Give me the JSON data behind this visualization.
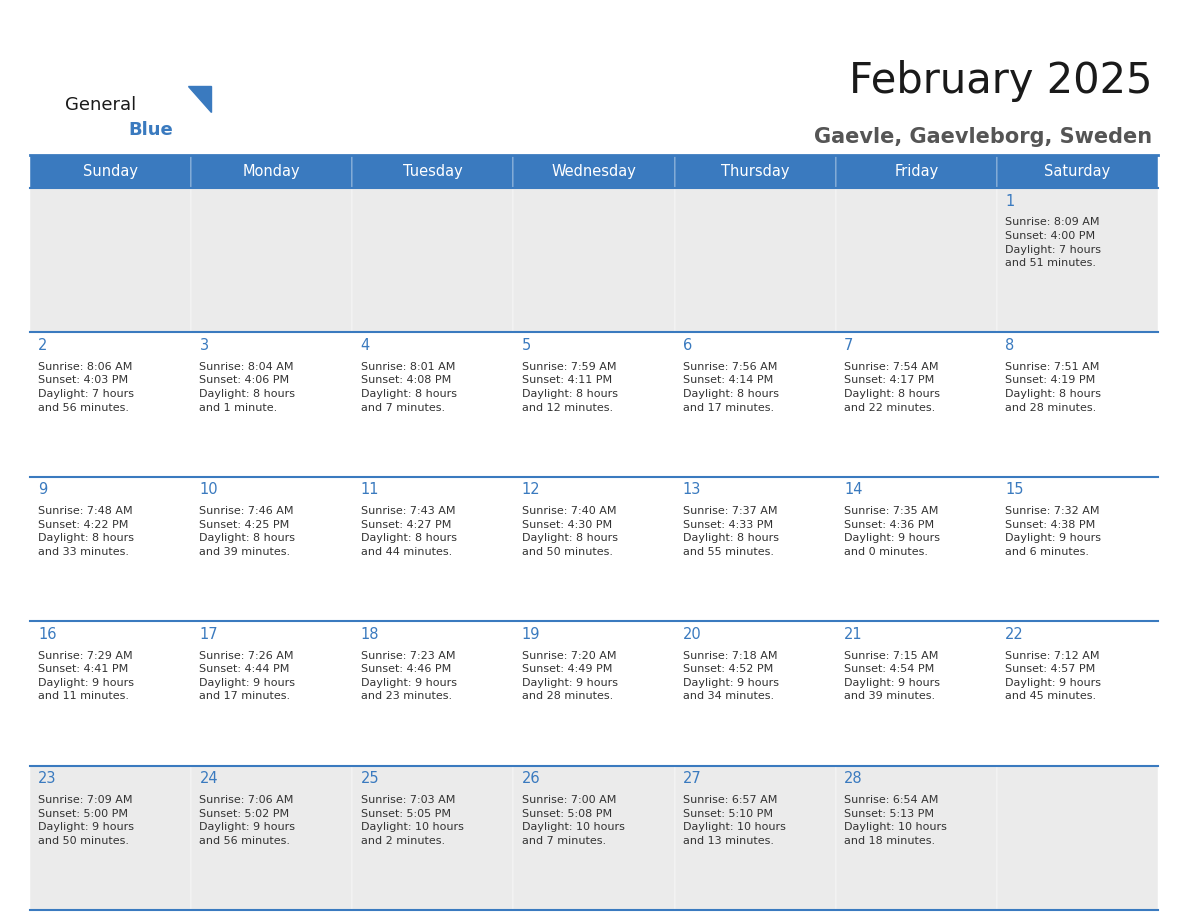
{
  "title": "February 2025",
  "subtitle": "Gaevle, Gaevleborg, Sweden",
  "header_color": "#3a7abf",
  "header_text_color": "#ffffff",
  "cell_bg_row0": "#ebebeb",
  "cell_bg_normal": "#ffffff",
  "cell_bg_last": "#ebebeb",
  "day_number_color": "#3a7abf",
  "info_text_color": "#333333",
  "border_color": "#3a7abf",
  "logo_general_color": "#1a1a1a",
  "logo_blue_color": "#3a7abf",
  "logo_triangle_color": "#3a7abf",
  "title_color": "#1a1a1a",
  "subtitle_color": "#555555",
  "days_of_week": [
    "Sunday",
    "Monday",
    "Tuesday",
    "Wednesday",
    "Thursday",
    "Friday",
    "Saturday"
  ],
  "calendar_data": [
    [
      {
        "day": null,
        "info": null
      },
      {
        "day": null,
        "info": null
      },
      {
        "day": null,
        "info": null
      },
      {
        "day": null,
        "info": null
      },
      {
        "day": null,
        "info": null
      },
      {
        "day": null,
        "info": null
      },
      {
        "day": 1,
        "info": "Sunrise: 8:09 AM\nSunset: 4:00 PM\nDaylight: 7 hours\nand 51 minutes."
      }
    ],
    [
      {
        "day": 2,
        "info": "Sunrise: 8:06 AM\nSunset: 4:03 PM\nDaylight: 7 hours\nand 56 minutes."
      },
      {
        "day": 3,
        "info": "Sunrise: 8:04 AM\nSunset: 4:06 PM\nDaylight: 8 hours\nand 1 minute."
      },
      {
        "day": 4,
        "info": "Sunrise: 8:01 AM\nSunset: 4:08 PM\nDaylight: 8 hours\nand 7 minutes."
      },
      {
        "day": 5,
        "info": "Sunrise: 7:59 AM\nSunset: 4:11 PM\nDaylight: 8 hours\nand 12 minutes."
      },
      {
        "day": 6,
        "info": "Sunrise: 7:56 AM\nSunset: 4:14 PM\nDaylight: 8 hours\nand 17 minutes."
      },
      {
        "day": 7,
        "info": "Sunrise: 7:54 AM\nSunset: 4:17 PM\nDaylight: 8 hours\nand 22 minutes."
      },
      {
        "day": 8,
        "info": "Sunrise: 7:51 AM\nSunset: 4:19 PM\nDaylight: 8 hours\nand 28 minutes."
      }
    ],
    [
      {
        "day": 9,
        "info": "Sunrise: 7:48 AM\nSunset: 4:22 PM\nDaylight: 8 hours\nand 33 minutes."
      },
      {
        "day": 10,
        "info": "Sunrise: 7:46 AM\nSunset: 4:25 PM\nDaylight: 8 hours\nand 39 minutes."
      },
      {
        "day": 11,
        "info": "Sunrise: 7:43 AM\nSunset: 4:27 PM\nDaylight: 8 hours\nand 44 minutes."
      },
      {
        "day": 12,
        "info": "Sunrise: 7:40 AM\nSunset: 4:30 PM\nDaylight: 8 hours\nand 50 minutes."
      },
      {
        "day": 13,
        "info": "Sunrise: 7:37 AM\nSunset: 4:33 PM\nDaylight: 8 hours\nand 55 minutes."
      },
      {
        "day": 14,
        "info": "Sunrise: 7:35 AM\nSunset: 4:36 PM\nDaylight: 9 hours\nand 0 minutes."
      },
      {
        "day": 15,
        "info": "Sunrise: 7:32 AM\nSunset: 4:38 PM\nDaylight: 9 hours\nand 6 minutes."
      }
    ],
    [
      {
        "day": 16,
        "info": "Sunrise: 7:29 AM\nSunset: 4:41 PM\nDaylight: 9 hours\nand 11 minutes."
      },
      {
        "day": 17,
        "info": "Sunrise: 7:26 AM\nSunset: 4:44 PM\nDaylight: 9 hours\nand 17 minutes."
      },
      {
        "day": 18,
        "info": "Sunrise: 7:23 AM\nSunset: 4:46 PM\nDaylight: 9 hours\nand 23 minutes."
      },
      {
        "day": 19,
        "info": "Sunrise: 7:20 AM\nSunset: 4:49 PM\nDaylight: 9 hours\nand 28 minutes."
      },
      {
        "day": 20,
        "info": "Sunrise: 7:18 AM\nSunset: 4:52 PM\nDaylight: 9 hours\nand 34 minutes."
      },
      {
        "day": 21,
        "info": "Sunrise: 7:15 AM\nSunset: 4:54 PM\nDaylight: 9 hours\nand 39 minutes."
      },
      {
        "day": 22,
        "info": "Sunrise: 7:12 AM\nSunset: 4:57 PM\nDaylight: 9 hours\nand 45 minutes."
      }
    ],
    [
      {
        "day": 23,
        "info": "Sunrise: 7:09 AM\nSunset: 5:00 PM\nDaylight: 9 hours\nand 50 minutes."
      },
      {
        "day": 24,
        "info": "Sunrise: 7:06 AM\nSunset: 5:02 PM\nDaylight: 9 hours\nand 56 minutes."
      },
      {
        "day": 25,
        "info": "Sunrise: 7:03 AM\nSunset: 5:05 PM\nDaylight: 10 hours\nand 2 minutes."
      },
      {
        "day": 26,
        "info": "Sunrise: 7:00 AM\nSunset: 5:08 PM\nDaylight: 10 hours\nand 7 minutes."
      },
      {
        "day": 27,
        "info": "Sunrise: 6:57 AM\nSunset: 5:10 PM\nDaylight: 10 hours\nand 13 minutes."
      },
      {
        "day": 28,
        "info": "Sunrise: 6:54 AM\nSunset: 5:13 PM\nDaylight: 10 hours\nand 18 minutes."
      },
      {
        "day": null,
        "info": null
      }
    ]
  ]
}
